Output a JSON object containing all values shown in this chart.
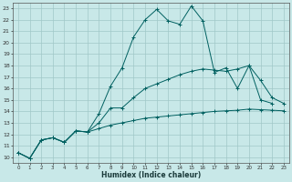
{
  "xlabel": "Humidex (Indice chaleur)",
  "background_color": "#c8e8e8",
  "grid_color": "#a0c8c8",
  "line_color": "#006060",
  "xlim_min": -0.5,
  "xlim_max": 23.5,
  "ylim_min": 9.5,
  "ylim_max": 23.5,
  "xticks": [
    0,
    1,
    2,
    3,
    4,
    5,
    6,
    7,
    8,
    9,
    10,
    11,
    12,
    13,
    14,
    15,
    16,
    17,
    18,
    19,
    20,
    21,
    22,
    23
  ],
  "yticks": [
    10,
    11,
    12,
    13,
    14,
    15,
    16,
    17,
    18,
    19,
    20,
    21,
    22,
    23
  ],
  "curve1_x": [
    0,
    1,
    2,
    3,
    4,
    5,
    6,
    7,
    8,
    9,
    10,
    11,
    12,
    13,
    14,
    15,
    16,
    17,
    18,
    19,
    20,
    21,
    22
  ],
  "curve1_y": [
    10.4,
    9.9,
    11.5,
    11.7,
    11.3,
    12.3,
    12.2,
    13.8,
    16.2,
    17.8,
    20.5,
    22.0,
    22.9,
    21.9,
    21.6,
    23.2,
    21.9,
    17.4,
    17.8,
    16.0,
    18.0,
    15.0,
    14.7
  ],
  "curve2_x": [
    0,
    1,
    2,
    3,
    4,
    5,
    6,
    7,
    8,
    9,
    10,
    11,
    12,
    13,
    14,
    15,
    16,
    17,
    18,
    19,
    20,
    21,
    22,
    23
  ],
  "curve2_y": [
    10.4,
    9.9,
    11.5,
    11.7,
    11.3,
    12.3,
    12.2,
    13.0,
    14.3,
    14.3,
    15.2,
    16.0,
    16.4,
    16.8,
    17.2,
    17.5,
    17.7,
    17.6,
    17.5,
    17.7,
    18.0,
    16.7,
    15.2,
    14.7
  ],
  "curve3_x": [
    0,
    1,
    2,
    3,
    4,
    5,
    6,
    7,
    8,
    9,
    10,
    11,
    12,
    13,
    14,
    15,
    16,
    17,
    18,
    19,
    20,
    21,
    22,
    23
  ],
  "curve3_y": [
    10.4,
    9.9,
    11.5,
    11.7,
    11.3,
    12.3,
    12.2,
    12.5,
    12.8,
    13.0,
    13.2,
    13.4,
    13.5,
    13.6,
    13.7,
    13.8,
    13.9,
    14.0,
    14.05,
    14.1,
    14.2,
    14.15,
    14.1,
    14.05
  ]
}
